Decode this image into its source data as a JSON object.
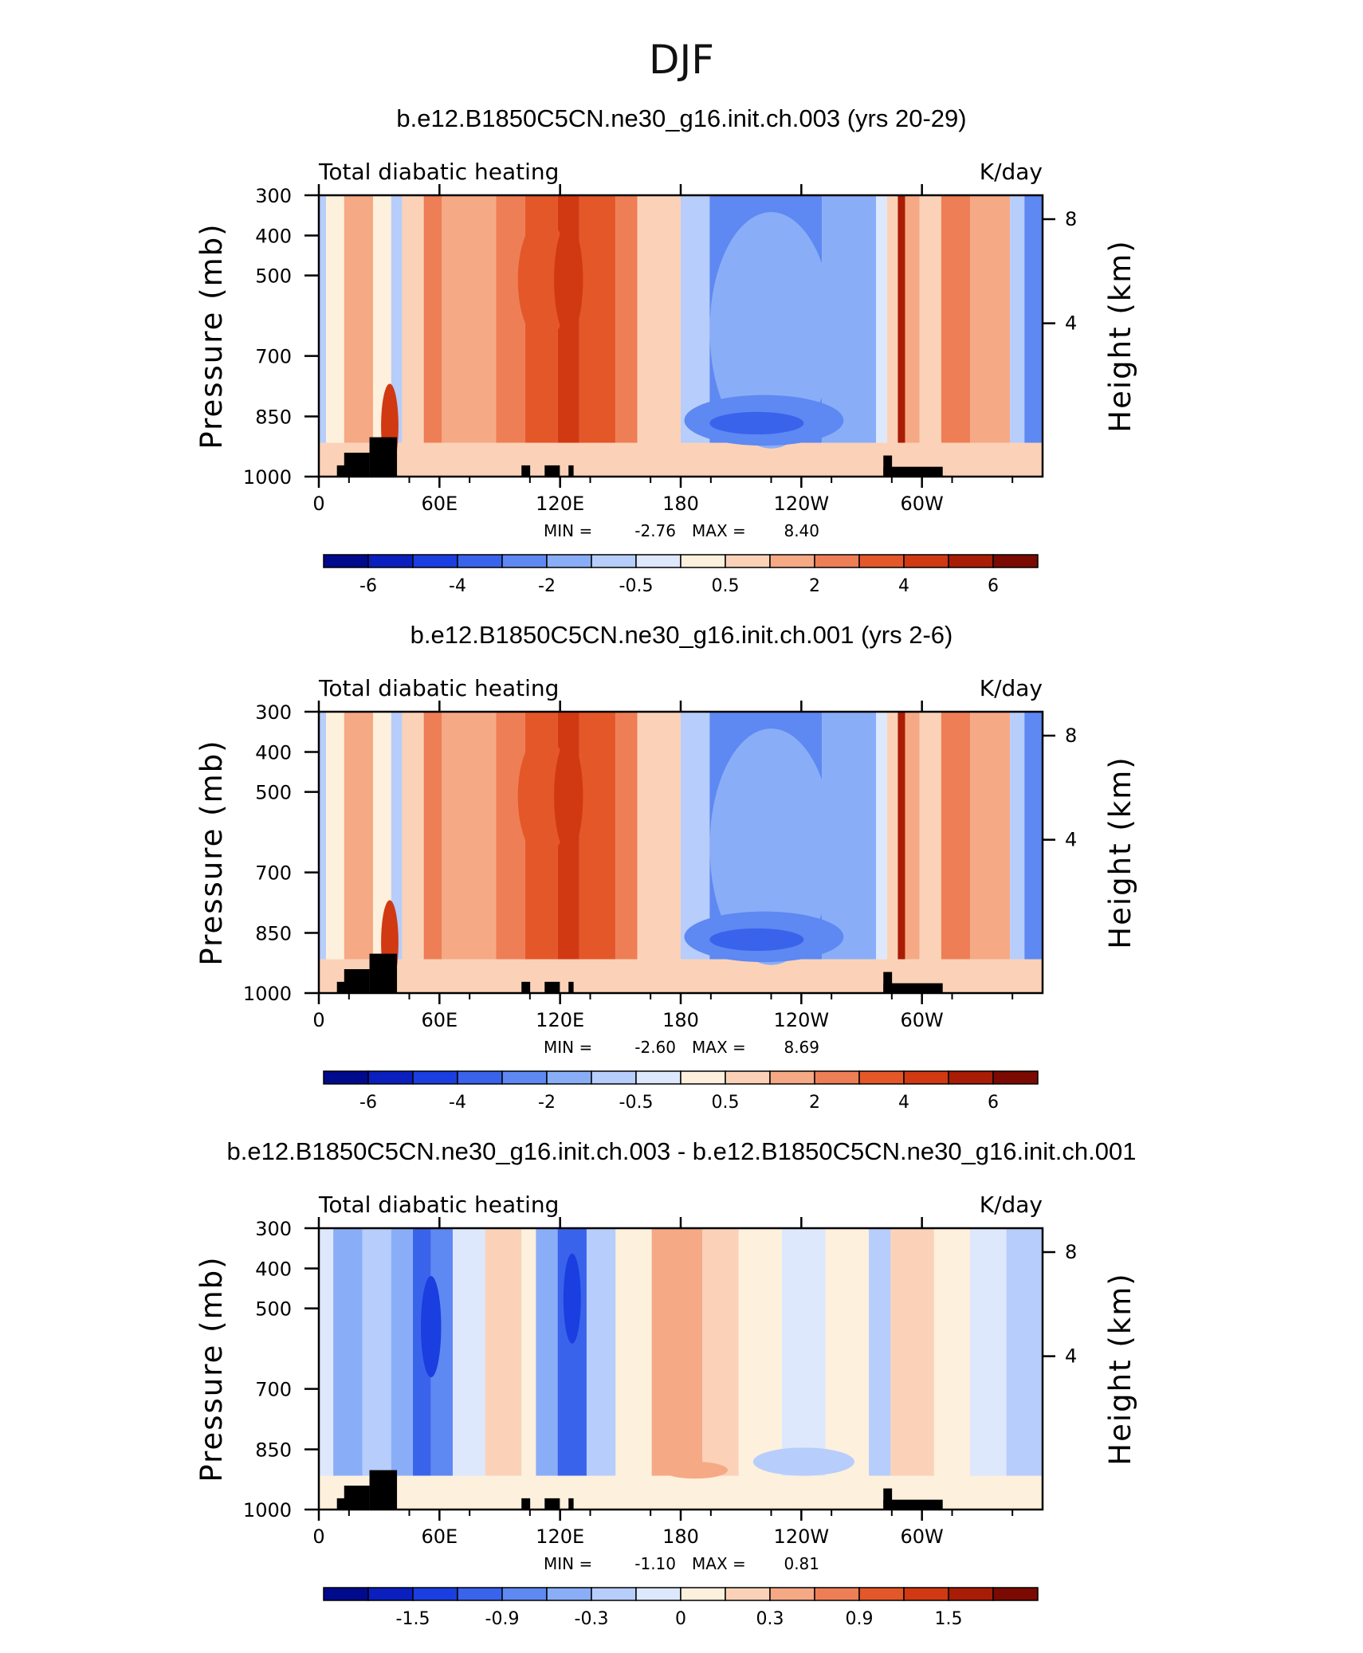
{
  "figure_title": "DJF",
  "colors": {
    "palette": [
      "#000a8c",
      "#0a1fbe",
      "#1a3ee0",
      "#3a63ec",
      "#5e88f2",
      "#8aadf7",
      "#b7cdfb",
      "#dde8fc",
      "#fdf0dc",
      "#fbd2b8",
      "#f6a985",
      "#ee7e56",
      "#e45729",
      "#d13912",
      "#a91c06",
      "#7a0a02"
    ],
    "terrain": "#000000"
  },
  "chart_data": [
    {
      "type": "heatmap",
      "title": "b.e12.B1850C5CN.ne30_g16.init.ch.003 (yrs 20-29)",
      "left_string": "Total diabatic heating",
      "right_string": "K/day",
      "xlabel": "",
      "ylabel": "Pressure (mb)",
      "ylabel_right": "Height (km)",
      "x_ticks": [
        "0",
        "60E",
        "120E",
        "180",
        "120W",
        "60W"
      ],
      "y_ticks": [
        "300",
        "400",
        "500",
        "700",
        "850",
        "1000"
      ],
      "right_ticks": [
        "8",
        "4"
      ],
      "min_label": "MIN =",
      "min_value": "-2.76",
      "max_label": "MAX =",
      "max_value": "8.40",
      "colorbar_labels": [
        "-6",
        "-4",
        "-2",
        "-0.5",
        "0.5",
        "2",
        "4",
        "6"
      ]
    },
    {
      "type": "heatmap",
      "title": "b.e12.B1850C5CN.ne30_g16.init.ch.001 (yrs 2-6)",
      "left_string": "Total diabatic heating",
      "right_string": "K/day",
      "xlabel": "",
      "ylabel": "Pressure (mb)",
      "ylabel_right": "Height (km)",
      "x_ticks": [
        "0",
        "60E",
        "120E",
        "180",
        "120W",
        "60W"
      ],
      "y_ticks": [
        "300",
        "400",
        "500",
        "700",
        "850",
        "1000"
      ],
      "right_ticks": [
        "8",
        "4"
      ],
      "min_label": "MIN =",
      "min_value": "-2.60",
      "max_label": "MAX =",
      "max_value": "8.69",
      "colorbar_labels": [
        "-6",
        "-4",
        "-2",
        "-0.5",
        "0.5",
        "2",
        "4",
        "6"
      ]
    },
    {
      "type": "heatmap",
      "title": "b.e12.B1850C5CN.ne30_g16.init.ch.003 - b.e12.B1850C5CN.ne30_g16.init.ch.001",
      "left_string": "Total diabatic heating",
      "right_string": "K/day",
      "xlabel": "",
      "ylabel": "Pressure (mb)",
      "ylabel_right": "Height (km)",
      "x_ticks": [
        "0",
        "60E",
        "120E",
        "180",
        "120W",
        "60W"
      ],
      "y_ticks": [
        "300",
        "400",
        "500",
        "700",
        "850",
        "1000"
      ],
      "right_ticks": [
        "8",
        "4"
      ],
      "min_label": "MIN =",
      "min_value": "-1.10",
      "max_label": "MAX =",
      "max_value": "0.81",
      "colorbar_labels": [
        "-1.5",
        "-0.9",
        "-0.3",
        "0",
        "0.3",
        "0.9",
        "1.5"
      ]
    }
  ]
}
